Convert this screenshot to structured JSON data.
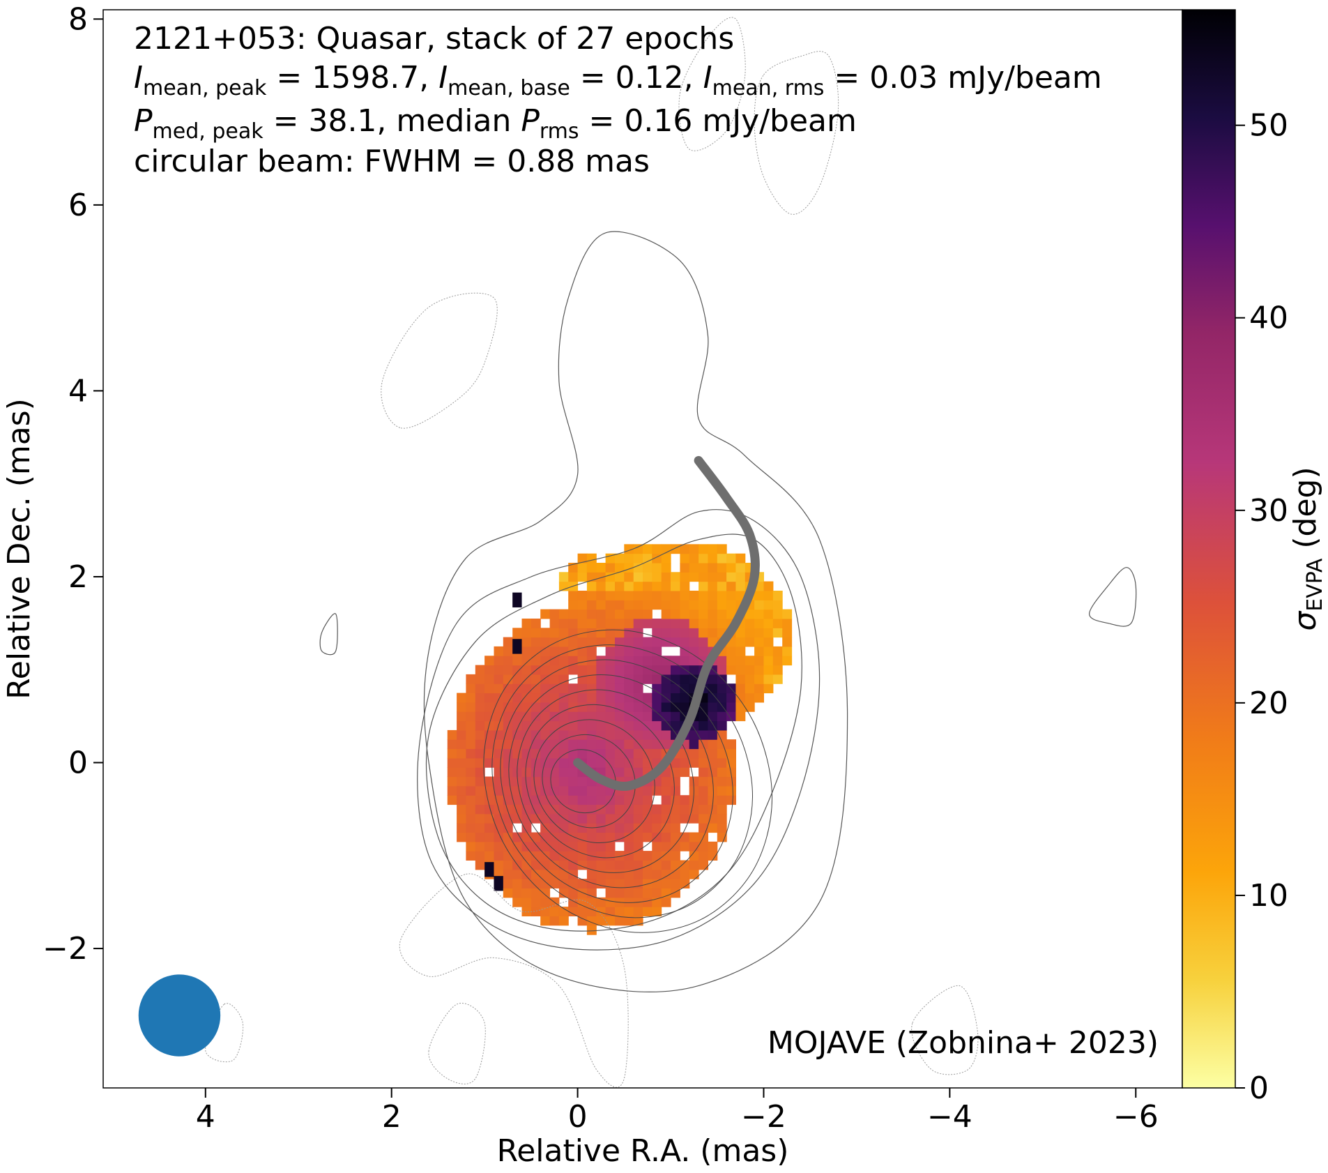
{
  "chart_data": {
    "type": "heatmap",
    "source_name": "2121+053",
    "title_lines": [
      "2121+053: Quasar, stack of 27 epochs",
      {
        "parts": [
          "I",
          "mean, peak",
          " = 1598.7, ",
          "I",
          "mean, base",
          " = 0.12, ",
          "I",
          "mean, rms",
          " = 0.03 mJy/beam"
        ]
      },
      {
        "parts": [
          "P",
          "med, peak",
          " = 38.1, median ",
          "P",
          "rms",
          " = 0.16 mJy/beam"
        ]
      },
      "circular beam: FWHM = 0.88 mas"
    ],
    "xlabel": "Relative R.A. (mas)",
    "ylabel": "Relative Dec. (mas)",
    "xlim": [
      5.1,
      -6.5
    ],
    "ylim": [
      -3.5,
      8.1
    ],
    "xticks": [
      4,
      2,
      0,
      -2,
      -4,
      -6
    ],
    "xtick_labels": [
      "4",
      "2",
      "0",
      "−2",
      "−4",
      "−6"
    ],
    "yticks": [
      -2,
      0,
      2,
      4,
      6,
      8
    ],
    "ytick_labels": [
      "−2",
      "0",
      "2",
      "4",
      "6",
      "8"
    ],
    "colorbar": {
      "label_symbol": "σ",
      "label_sub": "EVPA",
      "label_unit": "(deg)",
      "range": [
        0,
        56
      ],
      "ticks": [
        0,
        10,
        20,
        30,
        40,
        50
      ],
      "tick_labels": [
        "0",
        "10",
        "20",
        "30",
        "40",
        "50"
      ],
      "colormap": "inferno_r"
    },
    "credit": "MOJAVE (Zobnina+ 2023)",
    "beam": {
      "center": [
        4.28,
        -2.72
      ],
      "fwhm_mas": 0.88,
      "color": "#1f77b4"
    },
    "core_position": [
      0,
      0
    ],
    "ridge_line": {
      "color": "#6e6e6e",
      "points": [
        [
          0.0,
          0.0
        ],
        [
          -0.25,
          -0.18
        ],
        [
          -0.55,
          -0.25
        ],
        [
          -0.9,
          -0.05
        ],
        [
          -1.2,
          0.45
        ],
        [
          -1.4,
          1.05
        ],
        [
          -1.7,
          1.5
        ],
        [
          -1.9,
          2.0
        ],
        [
          -1.85,
          2.45
        ],
        [
          -1.6,
          2.85
        ],
        [
          -1.3,
          3.25
        ]
      ]
    },
    "image_core": {
      "peak_offset": [
        0.0,
        0.0
      ],
      "extent_mas": [
        [
          1.4,
          -2.3
        ],
        [
          -1.75,
          2.35
        ]
      ]
    },
    "contours": {
      "positive": [
        [
          [
            1.6,
            0.3
          ],
          [
            1.5,
            -0.8
          ],
          [
            1.0,
            -1.5
          ],
          [
            0.2,
            -1.8
          ],
          [
            -0.8,
            -1.7
          ],
          [
            -1.6,
            -1.2
          ],
          [
            -2.1,
            -0.3
          ],
          [
            -2.4,
            0.8
          ],
          [
            -2.3,
            1.8
          ],
          [
            -1.9,
            2.4
          ],
          [
            -1.3,
            2.4
          ],
          [
            -0.6,
            2.1
          ],
          [
            0.3,
            1.8
          ],
          [
            1.1,
            1.3
          ]
        ],
        [
          [
            1.7,
            0.2
          ],
          [
            1.6,
            -1.0
          ],
          [
            1.0,
            -1.7
          ],
          [
            0.1,
            -2.0
          ],
          [
            -1.0,
            -1.9
          ],
          [
            -1.9,
            -1.3
          ],
          [
            -2.4,
            -0.3
          ],
          [
            -2.6,
            0.9
          ],
          [
            -2.4,
            2.0
          ],
          [
            -1.9,
            2.6
          ],
          [
            -1.3,
            2.7
          ],
          [
            -0.6,
            2.3
          ],
          [
            0.5,
            2.0
          ],
          [
            1.3,
            1.5
          ]
        ],
        [
          [
            1.6,
            0.0
          ],
          [
            1.2,
            -1.5
          ],
          [
            0.2,
            -2.3
          ],
          [
            -1.3,
            -2.4
          ],
          [
            -2.6,
            -1.5
          ],
          [
            -2.9,
            0.5
          ],
          [
            -2.6,
            2.4
          ],
          [
            -1.8,
            3.3
          ],
          [
            -1.3,
            3.7
          ],
          [
            -1.4,
            4.6
          ],
          [
            -1.1,
            5.4
          ],
          [
            -0.3,
            5.7
          ],
          [
            0.1,
            5.0
          ],
          [
            0.2,
            4.1
          ],
          [
            0.0,
            3.1
          ],
          [
            0.4,
            2.6
          ],
          [
            1.2,
            2.2
          ],
          [
            1.6,
            1.2
          ]
        ],
        [
          [
            -5.5,
            1.6
          ],
          [
            -5.7,
            1.9
          ],
          [
            -5.9,
            2.1
          ],
          [
            -6.0,
            1.9
          ],
          [
            -5.95,
            1.5
          ],
          [
            -5.7,
            1.5
          ]
        ],
        [
          [
            2.75,
            1.4
          ],
          [
            2.6,
            1.6
          ],
          [
            2.6,
            1.2
          ],
          [
            2.75,
            1.2
          ]
        ]
      ],
      "negative": [
        [
          [
            -2.0,
            7.4
          ],
          [
            -2.4,
            7.6
          ],
          [
            -2.7,
            7.6
          ],
          [
            -2.8,
            7.0
          ],
          [
            -2.6,
            6.2
          ],
          [
            -2.3,
            5.9
          ],
          [
            -2.0,
            6.3
          ],
          [
            -1.9,
            6.9
          ]
        ],
        [
          [
            -1.1,
            7.2
          ],
          [
            -1.4,
            7.8
          ],
          [
            -1.7,
            8.0
          ],
          [
            -1.8,
            7.4
          ],
          [
            -1.6,
            6.8
          ],
          [
            -1.2,
            6.6
          ]
        ],
        [
          [
            1.9,
            3.6
          ],
          [
            1.3,
            3.9
          ],
          [
            1.0,
            4.3
          ],
          [
            0.9,
            5.0
          ],
          [
            1.6,
            4.9
          ],
          [
            2.1,
            4.1
          ]
        ],
        [
          [
            1.2,
            -1.2
          ],
          [
            0.6,
            -1.6
          ],
          [
            -0.1,
            -1.5
          ],
          [
            -0.5,
            -2.2
          ],
          [
            -0.5,
            -3.4
          ],
          [
            -0.2,
            -3.3
          ],
          [
            0.2,
            -2.4
          ],
          [
            0.9,
            -2.1
          ],
          [
            1.6,
            -2.3
          ],
          [
            1.9,
            -1.9
          ]
        ],
        [
          [
            1.6,
            -3.1
          ],
          [
            1.4,
            -3.4
          ],
          [
            1.1,
            -3.4
          ],
          [
            1.0,
            -2.8
          ],
          [
            1.3,
            -2.6
          ]
        ],
        [
          [
            -3.6,
            -2.8
          ],
          [
            -4.1,
            -2.4
          ],
          [
            -4.3,
            -2.9
          ],
          [
            -4.2,
            -3.3
          ],
          [
            -3.8,
            -3.3
          ]
        ],
        [
          [
            3.8,
            -2.6
          ],
          [
            3.6,
            -2.8
          ],
          [
            3.7,
            -3.2
          ],
          [
            4.0,
            -3.1
          ]
        ]
      ]
    }
  }
}
